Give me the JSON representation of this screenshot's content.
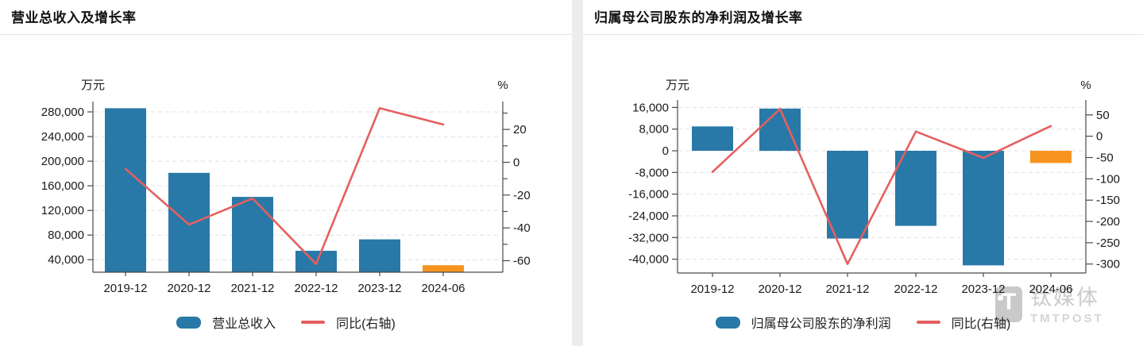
{
  "colors": {
    "bar_blue": "#2879A8",
    "bar_orange": "#F7941F",
    "line_red": "#E55F5F",
    "grid": "#E0E0E0",
    "axis": "#4A4A4A",
    "divider": "#EDEDED",
    "watermark_gray": "#CBCBCB"
  },
  "watermark": {
    "logo_letter": "T",
    "brand_cn": "钛媒体",
    "brand_en": "TMTPOST"
  },
  "chart_data": [
    {
      "type": "combo_bar_line",
      "title": "营业总收入及增长率",
      "categories": [
        "2019-12",
        "2020-12",
        "2021-12",
        "2022-12",
        "2023-12",
        "2024-06"
      ],
      "series": [
        {
          "name": "营业总收入",
          "type": "bar",
          "axis": "left",
          "values": [
            286000,
            181000,
            142000,
            54500,
            73000,
            31000
          ],
          "point_colors": [
            "#2879A8",
            "#2879A8",
            "#2879A8",
            "#2879A8",
            "#2879A8",
            "#F7941F"
          ]
        },
        {
          "name": "同比(右轴)",
          "type": "line",
          "axis": "right",
          "values": [
            -4,
            -38,
            -22,
            -62,
            33,
            23
          ],
          "color": "#E55F5F"
        }
      ],
      "left_axis": {
        "unit": "万元",
        "min": 19700,
        "max": 296800,
        "ticks": [
          280000,
          240000,
          200000,
          160000,
          120000,
          80000,
          40000
        ]
      },
      "right_axis": {
        "unit": "%",
        "min": -67,
        "max": 37,
        "ticks": [
          20,
          0,
          -20,
          -40,
          -60
        ],
        "minor_ticks": [
          30,
          10,
          -10,
          -30,
          -50
        ]
      },
      "grid": "dashed",
      "legend_position": "bottom"
    },
    {
      "type": "combo_bar_line",
      "title": "归属母公司股东的净利润及增长率",
      "categories": [
        "2019-12",
        "2020-12",
        "2021-12",
        "2022-12",
        "2023-12",
        "2024-06"
      ],
      "series": [
        {
          "name": "归属母公司股东的净利润",
          "type": "bar",
          "axis": "left",
          "values": [
            9000,
            15600,
            -32400,
            -27700,
            -42300,
            -4500
          ],
          "point_colors": [
            "#2879A8",
            "#2879A8",
            "#2879A8",
            "#2879A8",
            "#2879A8",
            "#F7941F"
          ]
        },
        {
          "name": "同比(右轴)",
          "type": "line",
          "axis": "right",
          "values": [
            -84,
            64,
            -300,
            11,
            -51,
            24
          ],
          "color": "#E55F5F"
        }
      ],
      "left_axis": {
        "unit": "万元",
        "min": -45100,
        "max": 18750,
        "ticks": [
          16000,
          8000,
          0,
          -8000,
          -16000,
          -24000,
          -32000,
          -40000
        ]
      },
      "right_axis": {
        "unit": "%",
        "min": -321,
        "max": 85,
        "ticks": [
          50,
          0,
          -50,
          -100,
          -150,
          -200,
          -250,
          -300
        ],
        "minor_ticks": []
      },
      "grid": "dashed",
      "legend_position": "bottom"
    }
  ]
}
